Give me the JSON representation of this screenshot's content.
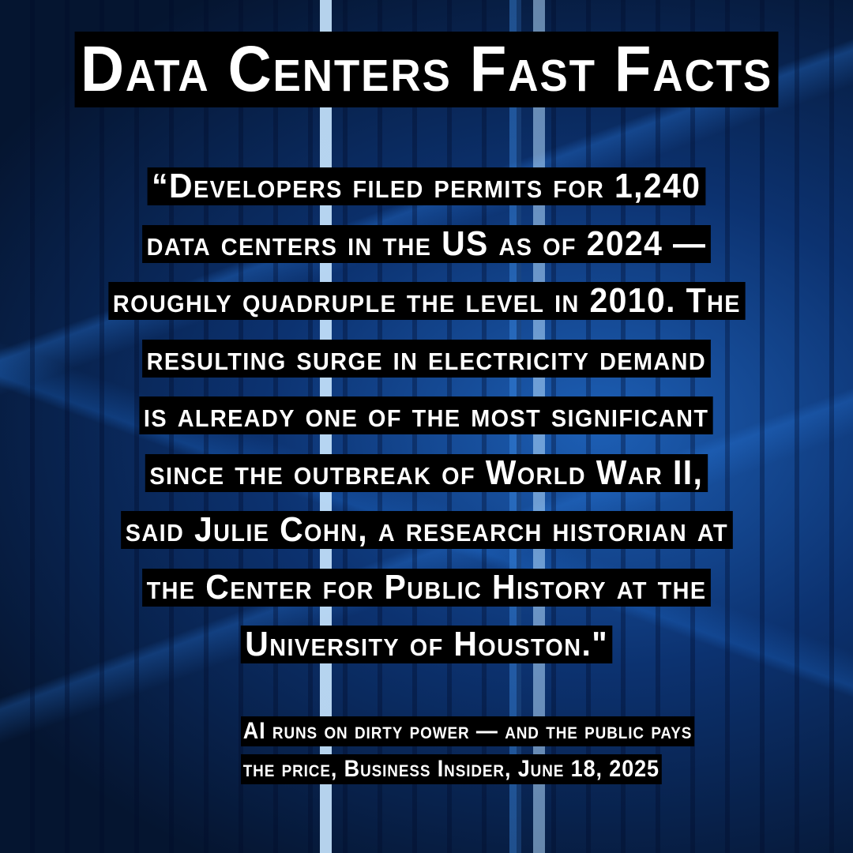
{
  "title": "Data Centers Fast Facts",
  "quote_lines": [
    "“Developers filed permits for 1,240",
    "data centers in the US as of 2024 —",
    "roughly quadruple the level in 2010. The",
    "resulting surge in electricity demand",
    "is already one of the most significant",
    "since the outbreak of World War II,",
    "said Julie Cohn, a research historian at",
    "the Center for Public History at the",
    "University of Houston.\""
  ],
  "citation_lines": [
    "AI runs on dirty power — and the public pays",
    "the price, Business Insider, June 18, 2025"
  ],
  "colors": {
    "background": "#0c3270",
    "highlight": "#000000",
    "text": "#ffffff"
  }
}
